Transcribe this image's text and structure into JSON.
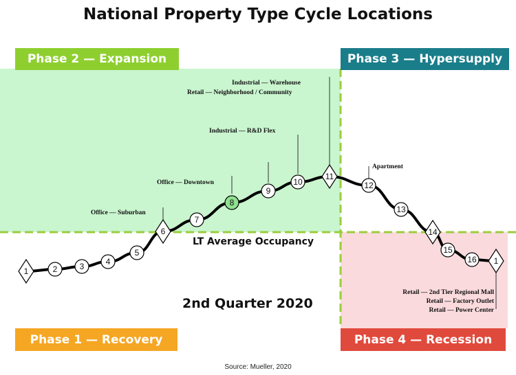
{
  "title": "National Property Type Cycle Locations",
  "phases": {
    "phase1": "Phase 1 — Recovery",
    "phase2": "Phase 2 — Expansion",
    "phase3": "Phase 3 — Hypersupply",
    "phase4": "Phase 4 — Recession"
  },
  "lt_average": "LT Average Occupancy",
  "quarter": "2nd Quarter 2020",
  "source": "Source: Mueller, 2020",
  "colors": {
    "expansion_zone": "#c9f5cf",
    "recession_zone": "#fadadd",
    "dashed_line": "#9ccc3c",
    "highlight_point": "#8fe08f"
  },
  "cycle_points": [
    {
      "n": "1",
      "shape": "diamond"
    },
    {
      "n": "2",
      "shape": "circle"
    },
    {
      "n": "3",
      "shape": "circle"
    },
    {
      "n": "4",
      "shape": "circle"
    },
    {
      "n": "5",
      "shape": "circle"
    },
    {
      "n": "6",
      "shape": "diamond"
    },
    {
      "n": "7",
      "shape": "circle"
    },
    {
      "n": "8",
      "shape": "circle",
      "highlight": true
    },
    {
      "n": "9",
      "shape": "circle"
    },
    {
      "n": "10",
      "shape": "circle"
    },
    {
      "n": "11",
      "shape": "diamond"
    },
    {
      "n": "12",
      "shape": "circle"
    },
    {
      "n": "13",
      "shape": "circle"
    },
    {
      "n": "14",
      "shape": "diamond"
    },
    {
      "n": "15",
      "shape": "circle"
    },
    {
      "n": "16",
      "shape": "circle"
    },
    {
      "n": "1",
      "shape": "diamond"
    }
  ],
  "property_labels": {
    "office_suburban": "Office — Suburban",
    "office_downtown": "Office — Downtown",
    "industrial_rd_flex": "Industrial — R&D Flex",
    "industrial_warehouse": "Industrial — Warehouse",
    "retail_neighborhood": "Retail — Neighborhood / Community",
    "apartment": "Apartment",
    "retail_2nd_tier": "Retail — 2nd Tier Regional Mall",
    "retail_factory_outlet": "Retail — Factory Outlet",
    "retail_power_center": "Retail — Power Center"
  }
}
